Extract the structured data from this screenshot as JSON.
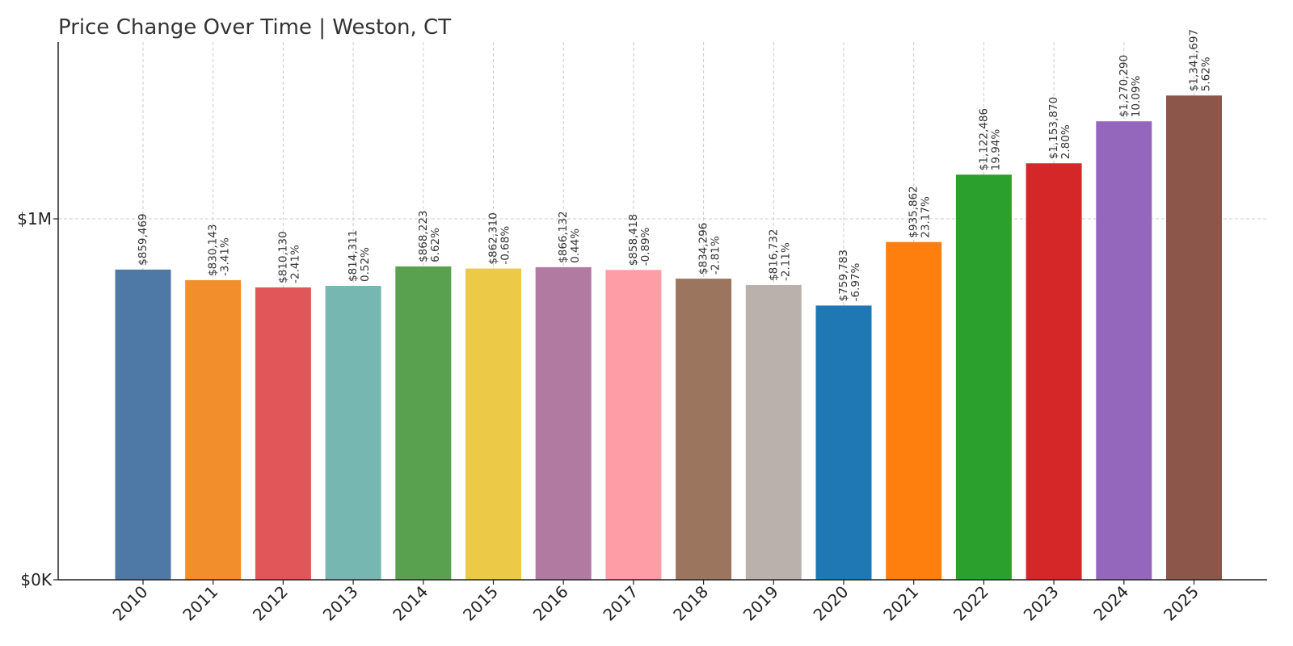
{
  "chart_data": {
    "type": "bar",
    "title": "Price Change Over Time | Weston, CT",
    "xlabel": "",
    "ylabel": "",
    "ylim": [
      0,
      1490000
    ],
    "y_ticks": [
      {
        "value": 0,
        "label": "$0K"
      },
      {
        "value": 1000000,
        "label": "$1M"
      }
    ],
    "grid": true,
    "categories": [
      "2010",
      "2011",
      "2012",
      "2013",
      "2014",
      "2015",
      "2016",
      "2017",
      "2018",
      "2019",
      "2020",
      "2021",
      "2022",
      "2023",
      "2024",
      "2025"
    ],
    "values": [
      859469,
      830143,
      810130,
      814311,
      868223,
      862310,
      866132,
      858418,
      834296,
      816732,
      759783,
      935862,
      1122486,
      1153870,
      1270290,
      1341697
    ],
    "value_labels": [
      "$859,469",
      "$830,143",
      "$810,130",
      "$814,311",
      "$868,223",
      "$862,310",
      "$866,132",
      "$858,418",
      "$834,296",
      "$816,732",
      "$759,783",
      "$935,862",
      "$1,122,486",
      "$1,153,870",
      "$1,270,290",
      "$1,341,697"
    ],
    "change_labels": [
      "",
      "-3.41%",
      "-2.41%",
      "0.52%",
      "6.62%",
      "-0.68%",
      "0.44%",
      "-0.89%",
      "-2.81%",
      "-2.11%",
      "-6.97%",
      "23.17%",
      "19.94%",
      "2.80%",
      "10.09%",
      "5.62%"
    ],
    "colors": [
      "#4e79a7",
      "#f28e2b",
      "#e15759",
      "#76b7b2",
      "#59a14f",
      "#edc948",
      "#b07aa1",
      "#ff9da7",
      "#9c755f",
      "#bab0ac",
      "#1f77b4",
      "#ff7f0e",
      "#2ca02c",
      "#d62728",
      "#9467bd",
      "#8c564b"
    ]
  }
}
